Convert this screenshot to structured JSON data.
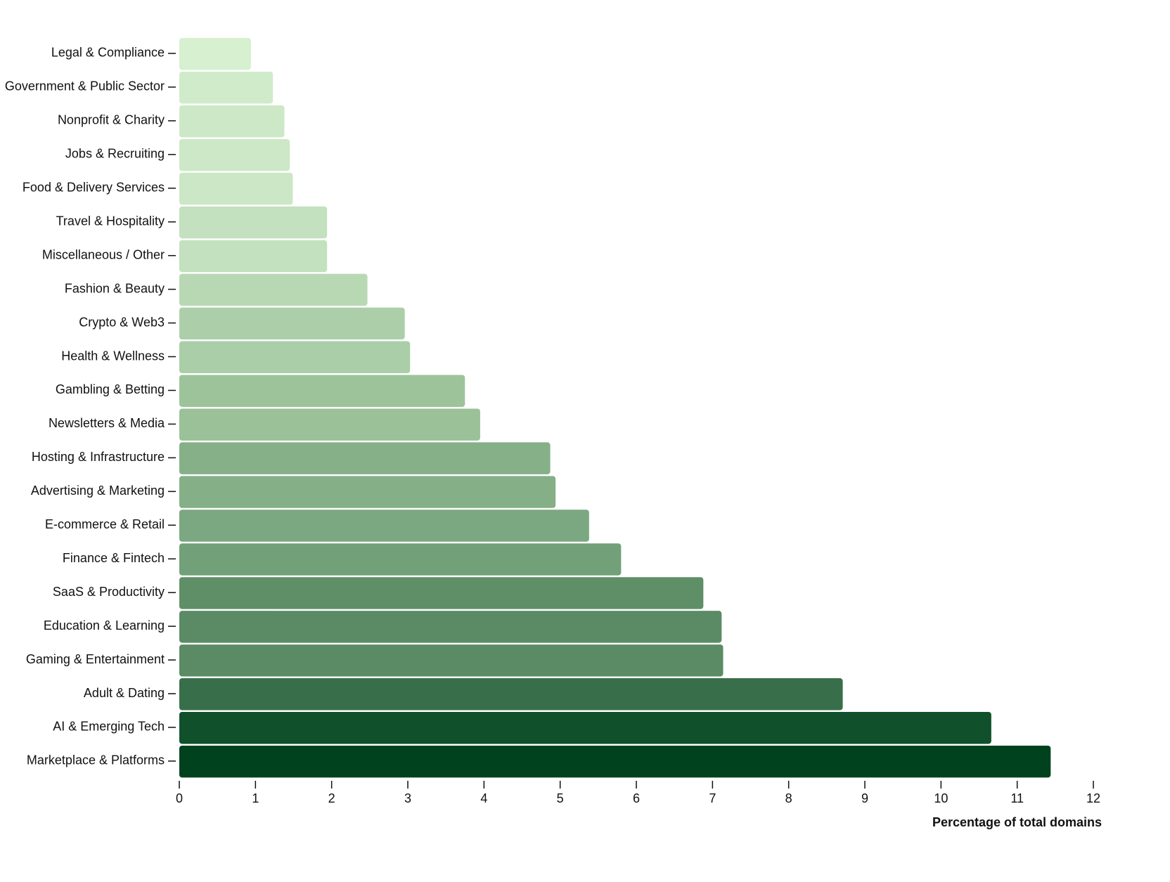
{
  "chart_data": {
    "type": "bar",
    "orientation": "horizontal",
    "x_label": "Percentage of total domains",
    "categories": [
      "Legal & Compliance",
      "Government & Public Sector",
      "Nonprofit & Charity",
      "Jobs & Recruiting",
      "Food & Delivery Services",
      "Travel & Hospitality",
      "Miscellaneous / Other",
      "Fashion & Beauty",
      "Crypto & Web3",
      "Health & Wellness",
      "Gambling & Betting",
      "Newsletters & Media",
      "Hosting & Infrastructure",
      "Advertising & Marketing",
      "E-commerce & Retail",
      "Finance & Fintech",
      "SaaS & Productivity",
      "Education & Learning",
      "Gaming & Entertainment",
      "Adult & Dating",
      "AI & Emerging Tech",
      "Marketplace & Platforms"
    ],
    "values": [
      0.94,
      1.23,
      1.38,
      1.45,
      1.49,
      1.94,
      1.94,
      2.47,
      2.96,
      3.03,
      3.75,
      3.95,
      4.87,
      4.94,
      5.38,
      5.8,
      6.88,
      7.12,
      7.14,
      8.71,
      10.66,
      11.44
    ],
    "colors": [
      "#d6f0d0",
      "#d0ebca",
      "#cde8c6",
      "#cce8c6",
      "#cbe7c5",
      "#c3e0bf",
      "#c3e0bf",
      "#b8d8b4",
      "#accfa9",
      "#aacea7",
      "#9dc39a",
      "#9ac198",
      "#86b088",
      "#85af87",
      "#7ba880",
      "#72a078",
      "#5f8f67",
      "#5b8b65",
      "#5b8b65",
      "#386f4a",
      "#10502b",
      "#00421e"
    ],
    "xlim": [
      0,
      12
    ],
    "xticks": [
      0,
      1,
      2,
      3,
      4,
      5,
      6,
      7,
      8,
      9,
      10,
      11,
      12
    ]
  }
}
